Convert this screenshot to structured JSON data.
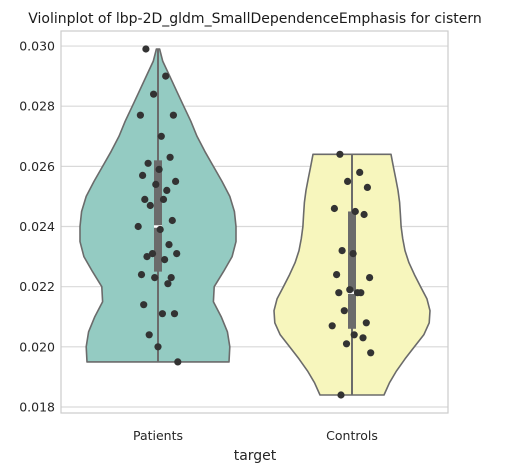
{
  "chart_data": {
    "type": "violin",
    "title": "Violinplot of lbp-2D_gldm_SmallDependenceEmphasis for cistern",
    "xlabel": "target",
    "ylabel": "",
    "ylim": [
      0.0178,
      0.0305
    ],
    "yticks": [
      0.018,
      0.02,
      0.022,
      0.024,
      0.026,
      0.028,
      0.03
    ],
    "ytick_labels": [
      "0.018",
      "0.020",
      "0.022",
      "0.024",
      "0.026",
      "0.028",
      "0.030"
    ],
    "grid": true,
    "categories": [
      "Patients",
      "Controls"
    ],
    "series": [
      {
        "category": "Patients",
        "color": "#94cbc2",
        "min": 0.0195,
        "max": 0.0299,
        "q1": 0.0225,
        "median": 0.024,
        "q3": 0.0262,
        "density": [
          [
            0.0195,
            0.91
          ],
          [
            0.02,
            0.92
          ],
          [
            0.0205,
            0.89
          ],
          [
            0.021,
            0.81
          ],
          [
            0.0215,
            0.71
          ],
          [
            0.022,
            0.72
          ],
          [
            0.0225,
            0.84
          ],
          [
            0.023,
            0.95
          ],
          [
            0.0235,
            1.0
          ],
          [
            0.024,
            1.0
          ],
          [
            0.0245,
            0.98
          ],
          [
            0.025,
            0.92
          ],
          [
            0.0255,
            0.82
          ],
          [
            0.026,
            0.71
          ],
          [
            0.0265,
            0.6
          ],
          [
            0.027,
            0.5
          ],
          [
            0.0275,
            0.42
          ],
          [
            0.028,
            0.33
          ],
          [
            0.0285,
            0.24
          ],
          [
            0.029,
            0.15
          ],
          [
            0.0295,
            0.06
          ],
          [
            0.0299,
            0.02
          ]
        ],
        "points": [
          0.0299,
          0.029,
          0.0284,
          0.0277,
          0.0277,
          0.027,
          0.0263,
          0.0261,
          0.0259,
          0.0257,
          0.0255,
          0.0254,
          0.0252,
          0.0249,
          0.0249,
          0.0247,
          0.0242,
          0.024,
          0.0239,
          0.0234,
          0.0231,
          0.0231,
          0.023,
          0.0229,
          0.0224,
          0.0223,
          0.0223,
          0.0221,
          0.0214,
          0.0211,
          0.0211,
          0.0204,
          0.02,
          0.0195
        ]
      },
      {
        "category": "Controls",
        "color": "#f7f6bd",
        "min": 0.0184,
        "max": 0.0264,
        "q1": 0.0206,
        "median": 0.0218,
        "q3": 0.0245,
        "density": [
          [
            0.0184,
            0.41
          ],
          [
            0.0188,
            0.48
          ],
          [
            0.0192,
            0.57
          ],
          [
            0.0196,
            0.68
          ],
          [
            0.02,
            0.8
          ],
          [
            0.0204,
            0.92
          ],
          [
            0.0208,
            0.99
          ],
          [
            0.0212,
            1.0
          ],
          [
            0.0216,
            0.96
          ],
          [
            0.022,
            0.88
          ],
          [
            0.0224,
            0.8
          ],
          [
            0.0228,
            0.73
          ],
          [
            0.0232,
            0.68
          ],
          [
            0.0236,
            0.65
          ],
          [
            0.024,
            0.63
          ],
          [
            0.0244,
            0.62
          ],
          [
            0.0248,
            0.61
          ],
          [
            0.0252,
            0.59
          ],
          [
            0.0256,
            0.56
          ],
          [
            0.026,
            0.53
          ],
          [
            0.0264,
            0.5
          ]
        ],
        "points": [
          0.0264,
          0.0258,
          0.0255,
          0.0253,
          0.0246,
          0.0245,
          0.0244,
          0.0232,
          0.0231,
          0.0224,
          0.0223,
          0.0219,
          0.0218,
          0.0218,
          0.0218,
          0.0212,
          0.0208,
          0.0207,
          0.0204,
          0.0203,
          0.0201,
          0.0198,
          0.0184
        ]
      }
    ]
  }
}
